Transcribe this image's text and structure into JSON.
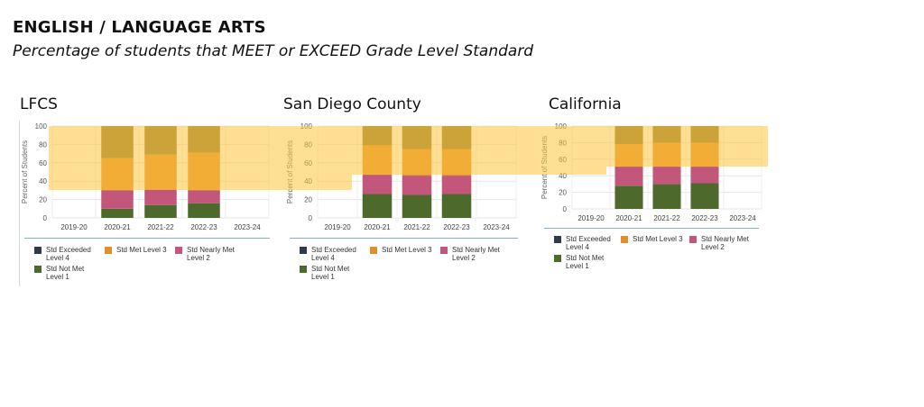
{
  "heading": {
    "title": "ENGLISH / LANGUAGE ARTS",
    "subtitle": "Percentage of students that MEET or EXCEED Grade Level Standard"
  },
  "colors": {
    "exceeded": "#8c7a34",
    "met": "#e0902e",
    "nearly": "#c2577b",
    "notmet": "#4d6a2c",
    "legend_exceeded": "#2f3a4a",
    "highlight": "#ffc43c"
  },
  "legend": {
    "exceeded": "Std Exceeded Level 4",
    "met": "Std Met Level 3",
    "nearly": "Std Nearly Met Level 2",
    "notmet": "Std Not Met Level 1"
  },
  "chart_data": [
    {
      "type": "bar",
      "title": "LFCS",
      "ylabel": "Percent of Students",
      "ylim": [
        0,
        100
      ],
      "yticks": [
        0,
        20,
        40,
        60,
        80,
        100
      ],
      "categories": [
        "2019-20",
        "2020-21",
        "2021-22",
        "2022-23",
        "2023-24"
      ],
      "series": [
        {
          "name": "Std Not Met Level 1",
          "values": [
            null,
            10,
            14,
            16,
            null
          ]
        },
        {
          "name": "Std Nearly Met Level 2",
          "values": [
            null,
            20,
            17,
            14,
            null
          ]
        },
        {
          "name": "Std Met Level 3",
          "values": [
            null,
            35,
            38,
            41,
            null
          ]
        },
        {
          "name": "Std Exceeded Level 4",
          "values": [
            null,
            35,
            31,
            29,
            null
          ]
        }
      ]
    },
    {
      "type": "bar",
      "title": "San Diego County",
      "ylabel": "Percent of Students",
      "ylim": [
        0,
        100
      ],
      "yticks": [
        0,
        20,
        40,
        60,
        80,
        100
      ],
      "categories": [
        "2019-20",
        "2020-21",
        "2021-22",
        "2022-23",
        "2023-24"
      ],
      "series": [
        {
          "name": "Std Not Met Level 1",
          "values": [
            null,
            26,
            25,
            26,
            null
          ]
        },
        {
          "name": "Std Nearly Met Level 2",
          "values": [
            null,
            21,
            21,
            20,
            null
          ]
        },
        {
          "name": "Std Met Level 3",
          "values": [
            null,
            32,
            29,
            29,
            null
          ]
        },
        {
          "name": "Std Exceeded Level 4",
          "values": [
            null,
            21,
            25,
            25,
            null
          ]
        }
      ]
    },
    {
      "type": "bar",
      "title": "California",
      "ylabel": "Percent of Students",
      "ylim": [
        0,
        100
      ],
      "yticks": [
        0,
        20,
        40,
        60,
        80,
        100
      ],
      "categories": [
        "2019-20",
        "2020-21",
        "2021-22",
        "2022-23",
        "2023-24"
      ],
      "series": [
        {
          "name": "Std Not Met Level 1",
          "values": [
            null,
            28,
            30,
            31,
            null
          ]
        },
        {
          "name": "Std Nearly Met Level 2",
          "values": [
            null,
            23,
            21,
            20,
            null
          ]
        },
        {
          "name": "Std Met Level 3",
          "values": [
            null,
            27,
            29,
            29,
            null
          ]
        },
        {
          "name": "Std Exceeded Level 4",
          "values": [
            null,
            22,
            20,
            20,
            null
          ]
        }
      ]
    }
  ]
}
